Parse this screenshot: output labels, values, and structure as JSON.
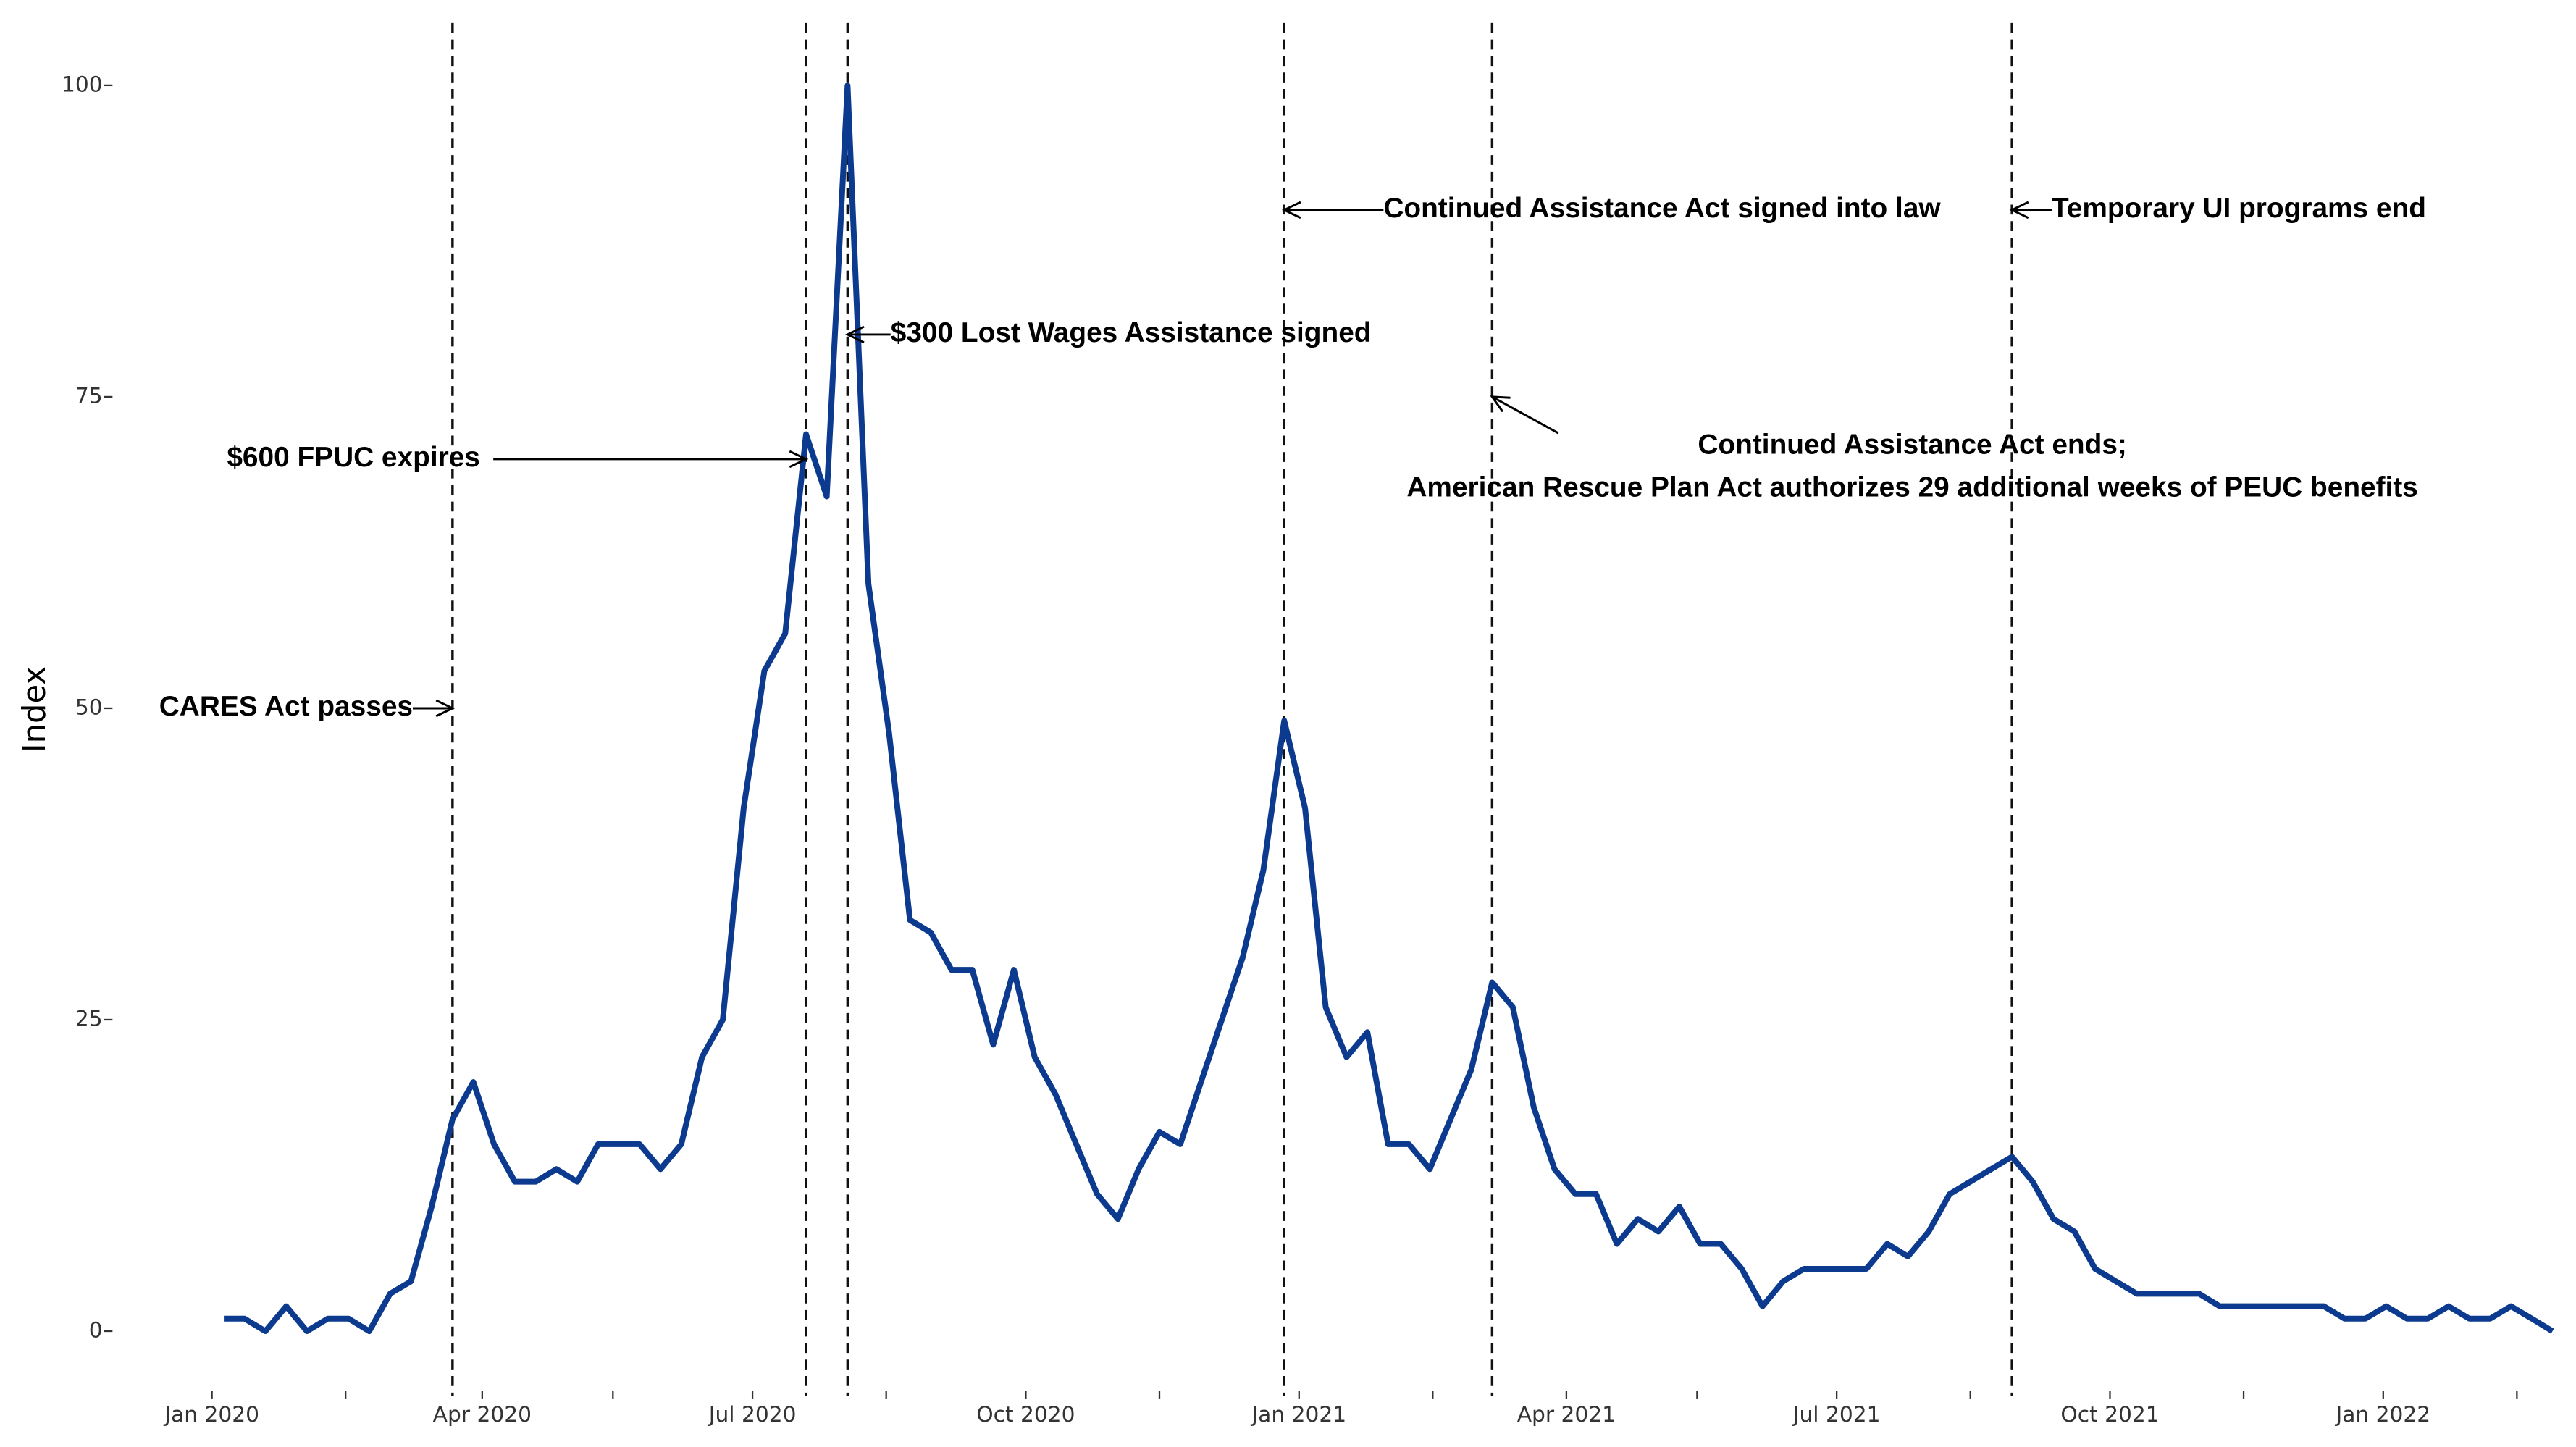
{
  "chart_data": {
    "type": "line",
    "y_label": "Index",
    "x": [
      "2020-01-05",
      "2020-01-12",
      "2020-01-19",
      "2020-01-26",
      "2020-02-02",
      "2020-02-09",
      "2020-02-16",
      "2020-02-23",
      "2020-03-01",
      "2020-03-08",
      "2020-03-15",
      "2020-03-22",
      "2020-03-29",
      "2020-04-05",
      "2020-04-12",
      "2020-04-19",
      "2020-04-26",
      "2020-05-03",
      "2020-05-10",
      "2020-05-17",
      "2020-05-24",
      "2020-05-31",
      "2020-06-07",
      "2020-06-14",
      "2020-06-21",
      "2020-06-28",
      "2020-07-05",
      "2020-07-12",
      "2020-07-19",
      "2020-07-26",
      "2020-08-02",
      "2020-08-09",
      "2020-08-16",
      "2020-08-23",
      "2020-08-30",
      "2020-09-06",
      "2020-09-13",
      "2020-09-20",
      "2020-09-27",
      "2020-10-04",
      "2020-10-11",
      "2020-10-18",
      "2020-10-25",
      "2020-11-01",
      "2020-11-08",
      "2020-11-15",
      "2020-11-22",
      "2020-11-29",
      "2020-12-06",
      "2020-12-13",
      "2020-12-20",
      "2020-12-27",
      "2021-01-03",
      "2021-01-10",
      "2021-01-17",
      "2021-01-24",
      "2021-01-31",
      "2021-02-07",
      "2021-02-14",
      "2021-02-21",
      "2021-02-28",
      "2021-03-07",
      "2021-03-14",
      "2021-03-21",
      "2021-03-28",
      "2021-04-04",
      "2021-04-11",
      "2021-04-18",
      "2021-04-25",
      "2021-05-02",
      "2021-05-09",
      "2021-05-16",
      "2021-05-23",
      "2021-05-30",
      "2021-06-06",
      "2021-06-13",
      "2021-06-20",
      "2021-06-27",
      "2021-07-04",
      "2021-07-11",
      "2021-07-18",
      "2021-07-25",
      "2021-08-01",
      "2021-08-08",
      "2021-08-15",
      "2021-08-22",
      "2021-08-29",
      "2021-09-05",
      "2021-09-12",
      "2021-09-19",
      "2021-09-26",
      "2021-10-03",
      "2021-10-10",
      "2021-10-17",
      "2021-10-24",
      "2021-10-31",
      "2021-11-07",
      "2021-11-14",
      "2021-11-21",
      "2021-11-28",
      "2021-12-05",
      "2021-12-12",
      "2021-12-19",
      "2021-12-26",
      "2022-01-02",
      "2022-01-09",
      "2022-01-16",
      "2022-01-23",
      "2022-01-30",
      "2022-02-06",
      "2022-02-13",
      "2022-02-20",
      "2022-02-27"
    ],
    "series": [
      {
        "name": "Index",
        "color": "#0b3a8f",
        "values": [
          1,
          1,
          0,
          2,
          0,
          1,
          1,
          0,
          3,
          4,
          10,
          17,
          20,
          15,
          12,
          12,
          13,
          12,
          15,
          15,
          15,
          13,
          15,
          22,
          25,
          42,
          53,
          56,
          72,
          67,
          100,
          60,
          48,
          33,
          32,
          29,
          29,
          23,
          29,
          22,
          19,
          15,
          11,
          9,
          13,
          16,
          15,
          20,
          25,
          30,
          37,
          49,
          42,
          26,
          22,
          24,
          15,
          15,
          13,
          17,
          21,
          28,
          26,
          18,
          13,
          11,
          11,
          7,
          9,
          8,
          10,
          7,
          7,
          5,
          2,
          4,
          5,
          5,
          5,
          5,
          7,
          6,
          8,
          11,
          12,
          13,
          14,
          12,
          9,
          8,
          5,
          4,
          3,
          3,
          3,
          3,
          2,
          2,
          2,
          2,
          2,
          2,
          1,
          1,
          2,
          1,
          1,
          2,
          1,
          1,
          2,
          1,
          0
        ]
      }
    ],
    "xlim": [
      "2019-12-08",
      "2022-03-03"
    ],
    "xticks": [
      {
        "value": "2020-01-01",
        "label": "Jan 2020"
      },
      {
        "value": "2020-04-01",
        "label": "Apr 2020"
      },
      {
        "value": "2020-07-01",
        "label": "Jul 2020"
      },
      {
        "value": "2020-10-01",
        "label": "Oct 2020"
      },
      {
        "value": "2021-01-01",
        "label": "Jan 2021"
      },
      {
        "value": "2021-04-01",
        "label": "Apr 2021"
      },
      {
        "value": "2021-07-01",
        "label": "Jul 2021"
      },
      {
        "value": "2021-10-01",
        "label": "Oct 2021"
      },
      {
        "value": "2022-01-01",
        "label": "Jan 2022"
      }
    ],
    "xminorticks": [
      "2020-02-15",
      "2020-05-15",
      "2020-08-15",
      "2020-11-15",
      "2021-02-15",
      "2021-05-15",
      "2021-08-15",
      "2021-11-15",
      "2022-02-15"
    ],
    "ylim": [
      -4.4,
      105
    ],
    "yticks": [
      0,
      25,
      50,
      75,
      100
    ],
    "grid": false,
    "vlines": [
      "2020-03-22",
      "2020-07-19",
      "2020-08-02",
      "2020-12-27",
      "2021-03-07",
      "2021-08-29"
    ],
    "annotations": [
      {
        "text": "CARES Act passes",
        "x": "2020-03-22",
        "y": 50
      },
      {
        "text": "$600 FPUC expires",
        "x": "2020-07-19",
        "y": 70
      },
      {
        "text": "$300 Lost Wages Assistance signed",
        "x": "2020-08-02",
        "y": 80
      },
      {
        "text": "Continued Assistance Act signed into law",
        "x": "2020-12-27",
        "y": 90
      },
      {
        "text": "Temporary UI programs end",
        "x": "2021-08-29",
        "y": 90
      },
      {
        "text": [
          "Continued Assistance Act ends;",
          "American Rescue Plan Act authorizes 29 additional weeks of PEUC benefits"
        ],
        "x": "2021-03-07",
        "y": 75
      }
    ]
  }
}
